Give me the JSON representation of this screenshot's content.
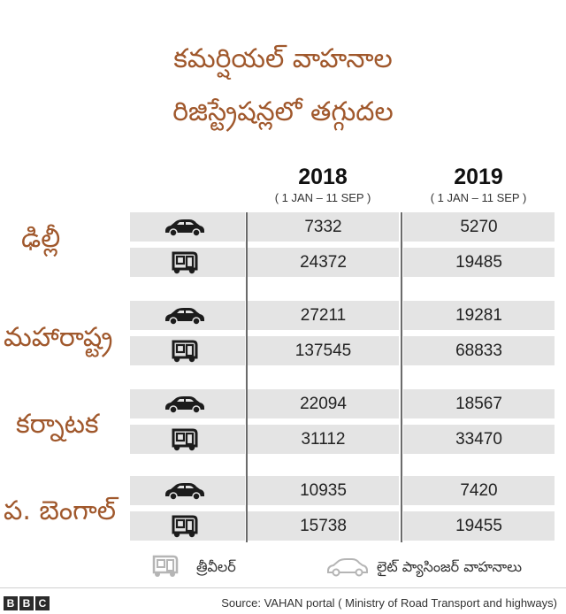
{
  "title_lines": [
    "కమర్షియల్ వాహనాల",
    "రిజిస్ట్రేషన్లలో తగ్గుదల"
  ],
  "chart_data": {
    "type": "table",
    "columns": [
      {
        "year": "2018",
        "range": "( 1 JAN – 11 SEP )"
      },
      {
        "year": "2019",
        "range": "( 1 JAN – 11 SEP )"
      }
    ],
    "groups": [
      {
        "state": "ఢిల్లీ",
        "rows": [
          {
            "vehicle": "car",
            "values": [
              "7332",
              "5270"
            ]
          },
          {
            "vehicle": "three-wheeler",
            "values": [
              "24372",
              "19485"
            ]
          }
        ]
      },
      {
        "state": "మహారాష్ట్ర",
        "rows": [
          {
            "vehicle": "car",
            "values": [
              "27211",
              "19281"
            ]
          },
          {
            "vehicle": "three-wheeler",
            "values": [
              "137545",
              "68833"
            ]
          }
        ]
      },
      {
        "state": "కర్నాటక",
        "rows": [
          {
            "vehicle": "car",
            "values": [
              "22094",
              "18567"
            ]
          },
          {
            "vehicle": "three-wheeler",
            "values": [
              "31112",
              "33470"
            ]
          }
        ]
      },
      {
        "state": "ప. బెంగాల్",
        "rows": [
          {
            "vehicle": "car",
            "values": [
              "10935",
              "7420"
            ]
          },
          {
            "vehicle": "three-wheeler",
            "values": [
              "15738",
              "19455"
            ]
          }
        ]
      }
    ]
  },
  "legend": {
    "three_wheeler": "త్రీవీలర్",
    "car": "లైట్ ప్యాసింజర్ వాహనాలు"
  },
  "footer": {
    "brand": [
      "B",
      "B",
      "C"
    ],
    "source": "Source: VAHAN portal ( Ministry of Road Transport and highways)"
  },
  "colors": {
    "accent": "#a0582c",
    "cell": "#e4e4e4",
    "divider": "#6b6b6b"
  }
}
